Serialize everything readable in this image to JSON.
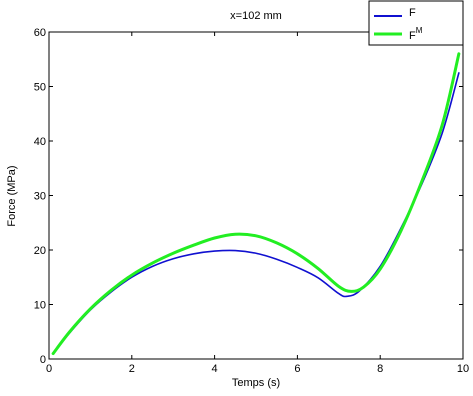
{
  "chart_data": {
    "type": "line",
    "title": "x=102 mm",
    "xlabel": "Temps (s)",
    "ylabel": "Force (MPa)",
    "xlim": [
      0,
      10
    ],
    "ylim": [
      0,
      60
    ],
    "xticks": [
      "0",
      "2",
      "4",
      "6",
      "8",
      "10"
    ],
    "yticks": [
      "0",
      "10",
      "20",
      "30",
      "40",
      "50",
      "60"
    ],
    "grid": false,
    "legend_position": "top-right",
    "series": [
      {
        "name": "F",
        "superscript": "",
        "color": "#1010d0",
        "points": [
          [
            0.1,
            1.0
          ],
          [
            0.5,
            4.8
          ],
          [
            1.0,
            9.0
          ],
          [
            1.5,
            12.3
          ],
          [
            2.0,
            15.0
          ],
          [
            2.5,
            17.0
          ],
          [
            3.0,
            18.4
          ],
          [
            3.5,
            19.3
          ],
          [
            4.0,
            19.8
          ],
          [
            4.5,
            19.9
          ],
          [
            5.0,
            19.4
          ],
          [
            5.5,
            18.3
          ],
          [
            6.0,
            16.8
          ],
          [
            6.5,
            14.9
          ],
          [
            7.0,
            12.0
          ],
          [
            7.2,
            11.5
          ],
          [
            7.5,
            12.5
          ],
          [
            8.0,
            17.0
          ],
          [
            8.5,
            24.0
          ],
          [
            9.0,
            32.0
          ],
          [
            9.5,
            41.5
          ],
          [
            9.9,
            52.5
          ]
        ]
      },
      {
        "name": "F",
        "superscript": "M",
        "color": "#22ee22",
        "points": [
          [
            0.1,
            1.0
          ],
          [
            0.5,
            5.0
          ],
          [
            1.0,
            9.2
          ],
          [
            1.5,
            12.6
          ],
          [
            2.0,
            15.4
          ],
          [
            2.5,
            17.6
          ],
          [
            3.0,
            19.4
          ],
          [
            3.5,
            20.9
          ],
          [
            4.0,
            22.2
          ],
          [
            4.5,
            22.9
          ],
          [
            5.0,
            22.6
          ],
          [
            5.5,
            21.3
          ],
          [
            6.0,
            19.3
          ],
          [
            6.5,
            16.6
          ],
          [
            7.0,
            13.3
          ],
          [
            7.3,
            12.4
          ],
          [
            7.6,
            13.2
          ],
          [
            8.0,
            16.5
          ],
          [
            8.5,
            23.5
          ],
          [
            9.0,
            32.5
          ],
          [
            9.5,
            43.0
          ],
          [
            9.9,
            56.0
          ]
        ]
      }
    ]
  }
}
